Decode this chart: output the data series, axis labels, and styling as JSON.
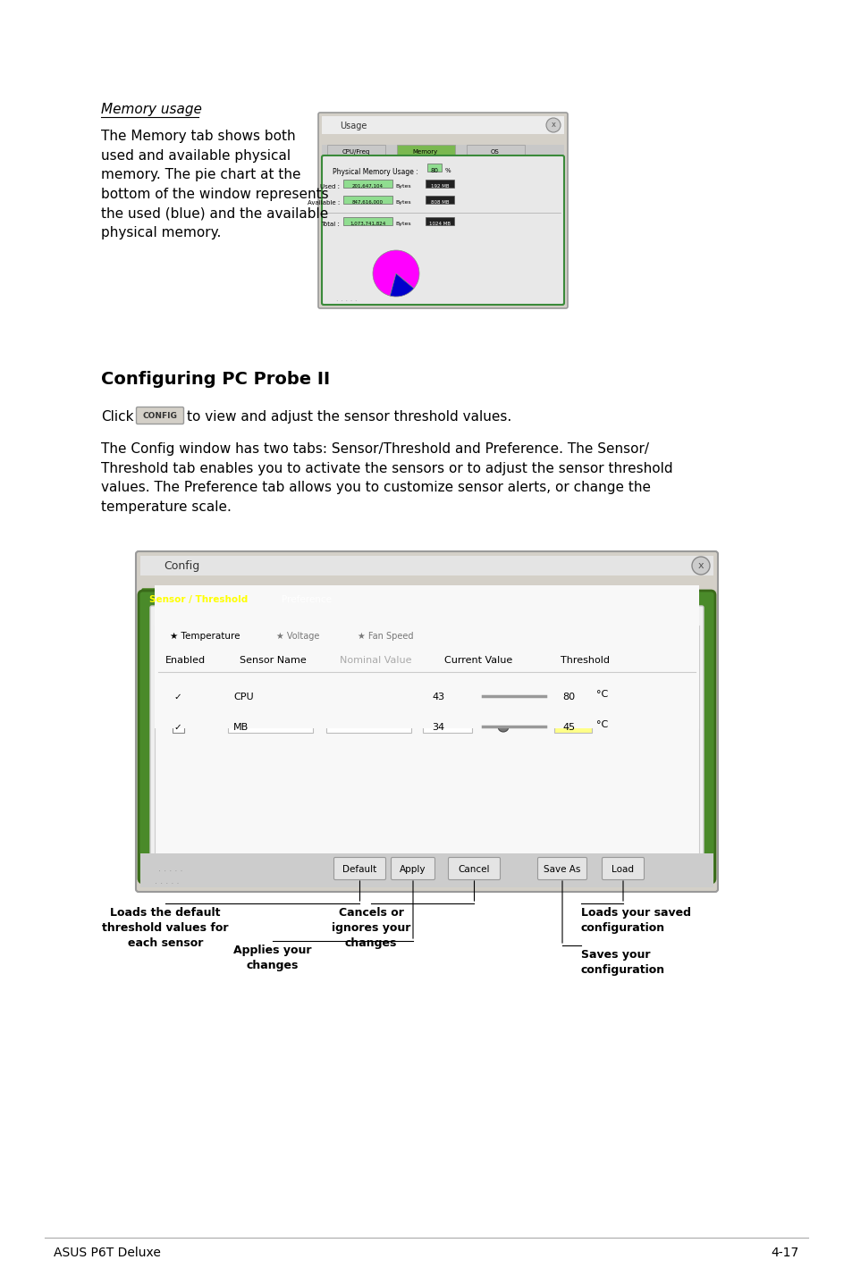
{
  "bg_color": "#ffffff",
  "section_title": "Memory usage",
  "body_text_1": "The Memory tab shows both\nused and available physical\nmemory. The pie chart at the\nbottom of the window represents\nthe used (blue) and the available\nphysical memory.",
  "section2_title": "Configuring PC Probe II",
  "section2_body2": "The Config window has two tabs: Sensor/Threshold and Preference. The Sensor/\nThreshold tab enables you to activate the sensors or to adjust the sensor threshold\nvalues. The Preference tab allows you to customize sensor alerts, or change the\ntemperature scale.",
  "footer_left": "ASUS P6T Deluxe",
  "footer_right": "4-17",
  "btn_labels": [
    "Default",
    "Apply",
    "Cancel",
    "Save As",
    "Load"
  ],
  "annotation_labels": [
    "Loads the default\nthreshold values for\neach sensor",
    "Applies your\nchanges",
    "Cancels or\nignores your\nchanges",
    "Loads your saved\nconfiguration",
    "Saves your\nconfiguration"
  ]
}
